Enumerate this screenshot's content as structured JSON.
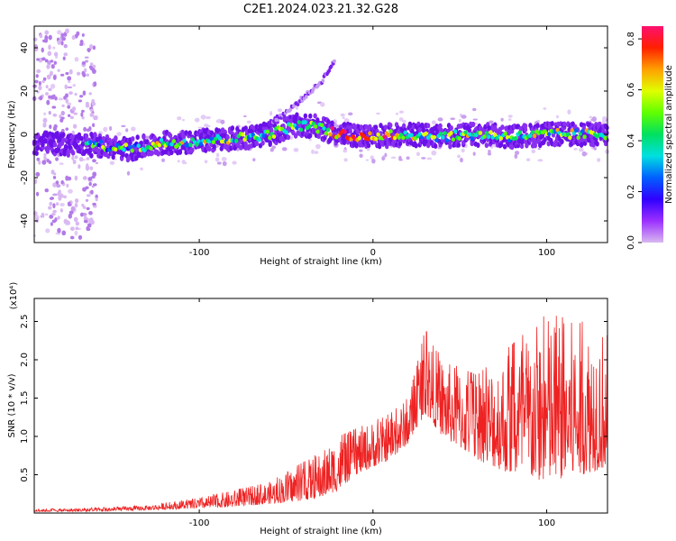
{
  "title": "C2E1.2024.023.21.32.G28",
  "chart_data": [
    {
      "type": "heatmap",
      "xlabel": "Height of straight line (km)",
      "ylabel": "Frequency (Hz)",
      "xlim": [
        -195,
        135
      ],
      "ylim": [
        -50,
        50
      ],
      "xticks": [
        -100,
        0,
        100
      ],
      "yticks": [
        -40,
        -20,
        0,
        20,
        40
      ],
      "colorbar": {
        "label": "Normalized spectral amplitude",
        "range": [
          0.0,
          0.85
        ],
        "ticks": [
          "0.0",
          "0.2",
          "0.4",
          "0.6",
          "0.8"
        ],
        "colors": [
          "#d8b8f0",
          "#9b30ff",
          "#3000ff",
          "#0060ff",
          "#00e0e0",
          "#00e060",
          "#60ff00",
          "#e0ff00",
          "#ffa000",
          "#ff2000",
          "#ff1070"
        ]
      },
      "ridge": [
        {
          "x": -195,
          "y": -4
        },
        {
          "x": -160,
          "y": -5
        },
        {
          "x": -140,
          "y": -7
        },
        {
          "x": -120,
          "y": -4
        },
        {
          "x": -100,
          "y": -3
        },
        {
          "x": -80,
          "y": -2
        },
        {
          "x": -60,
          "y": 0
        },
        {
          "x": -45,
          "y": 4
        },
        {
          "x": -35,
          "y": 4
        },
        {
          "x": -20,
          "y": 0
        },
        {
          "x": 0,
          "y": -1
        },
        {
          "x": 20,
          "y": 0
        },
        {
          "x": 40,
          "y": -1
        },
        {
          "x": 60,
          "y": 0
        },
        {
          "x": 80,
          "y": -1
        },
        {
          "x": 100,
          "y": 0
        },
        {
          "x": 120,
          "y": 0
        },
        {
          "x": 135,
          "y": 0
        }
      ],
      "upper_branch": [
        {
          "x": -60,
          "y": 5
        },
        {
          "x": -50,
          "y": 10
        },
        {
          "x": -40,
          "y": 17
        },
        {
          "x": -30,
          "y": 24
        },
        {
          "x": -22,
          "y": 34
        }
      ]
    },
    {
      "type": "line",
      "xlabel": "Height of straight line (km)",
      "ylabel": "SNR (10 * v/v)",
      "scale_note": "(x10⁴)",
      "xlim": [
        -195,
        135
      ],
      "ylim": [
        0,
        2.8
      ],
      "xticks": [
        -100,
        0,
        100
      ],
      "yticks": [
        0.5,
        1.0,
        1.5,
        2.0,
        2.5
      ],
      "ytick_labels": [
        "0.5",
        "1.0",
        "1.5",
        "2.0",
        "2.5"
      ],
      "series": [
        {
          "color": "#ee2222",
          "envelope_x": [
            -195,
            -160,
            -130,
            -100,
            -80,
            -60,
            -45,
            -30,
            -20,
            -10,
            0,
            10,
            20,
            25,
            30,
            40,
            60,
            80,
            100,
            120,
            135
          ],
          "envelope_low": [
            0.02,
            0.02,
            0.04,
            0.06,
            0.08,
            0.12,
            0.15,
            0.2,
            0.3,
            0.5,
            0.6,
            0.7,
            0.9,
            1.1,
            1.3,
            1.0,
            0.7,
            0.5,
            0.4,
            0.5,
            0.6
          ],
          "envelope_high": [
            0.05,
            0.07,
            0.1,
            0.2,
            0.3,
            0.4,
            0.6,
            0.8,
            1.0,
            1.1,
            1.2,
            1.3,
            1.5,
            1.9,
            2.4,
            2.0,
            1.8,
            2.2,
            2.6,
            2.5,
            2.4
          ]
        }
      ]
    }
  ]
}
